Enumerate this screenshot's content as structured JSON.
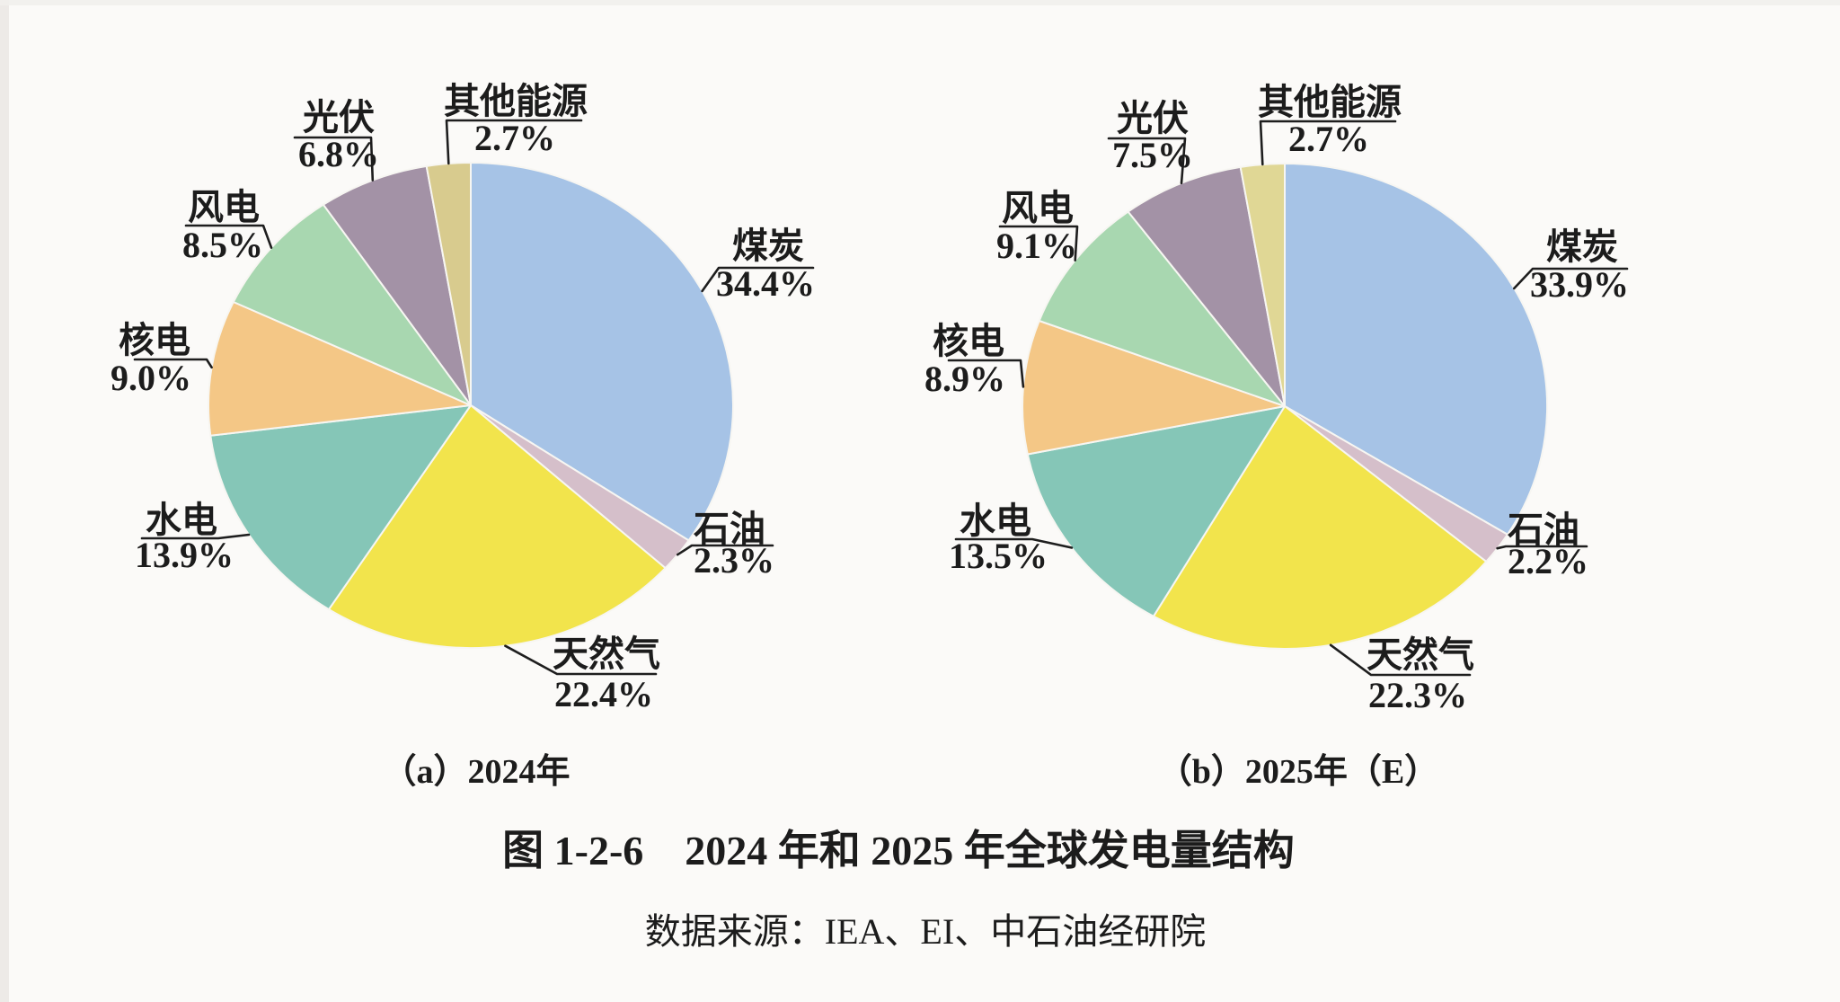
{
  "title": "图 1-2-6　2024 年和 2025 年全球发电量结构",
  "source": "数据来源：IEA、EI、中石油经研院",
  "chart_data": [
    {
      "type": "pie",
      "caption": "（a）2024年",
      "start_angle_deg": 0,
      "clockwise": true,
      "unit": "%",
      "slices": [
        {
          "label": "煤炭",
          "value": 34.4,
          "pct": "34.4%",
          "color": "#a6c3e6"
        },
        {
          "label": "石油",
          "value": 2.3,
          "pct": "2.3%",
          "color": "#d5bfca"
        },
        {
          "label": "天然气",
          "value": 22.4,
          "pct": "22.4%",
          "color": "#f2e44c"
        },
        {
          "label": "水电",
          "value": 13.9,
          "pct": "13.9%",
          "color": "#85c6b7"
        },
        {
          "label": "核电",
          "value": 9.0,
          "pct": "9.0%",
          "color": "#f4c786"
        },
        {
          "label": "风电",
          "value": 8.5,
          "pct": "8.5%",
          "color": "#a8d7b0"
        },
        {
          "label": "光伏",
          "value": 6.8,
          "pct": "6.8%",
          "color": "#a392a6"
        },
        {
          "label": "其他能源",
          "value": 2.7,
          "pct": "2.7%",
          "color": "#d8cb8e"
        }
      ]
    },
    {
      "type": "pie",
      "caption": "（b）2025年（E）",
      "start_angle_deg": 0,
      "clockwise": true,
      "unit": "%",
      "slices": [
        {
          "label": "煤炭",
          "value": 33.9,
          "pct": "33.9%",
          "color": "#a6c3e6"
        },
        {
          "label": "石油",
          "value": 2.2,
          "pct": "2.2%",
          "color": "#d5bfca"
        },
        {
          "label": "天然气",
          "value": 22.3,
          "pct": "22.3%",
          "color": "#f2e44c"
        },
        {
          "label": "水电",
          "value": 13.5,
          "pct": "13.5%",
          "color": "#85c6b7"
        },
        {
          "label": "核电",
          "value": 8.9,
          "pct": "8.9%",
          "color": "#f4c786"
        },
        {
          "label": "风电",
          "value": 9.1,
          "pct": "9.1%",
          "color": "#a8d7b0"
        },
        {
          "label": "光伏",
          "value": 7.5,
          "pct": "7.5%",
          "color": "#a392a6"
        },
        {
          "label": "其他能源",
          "value": 2.7,
          "pct": "2.7%",
          "color": "#e0d795"
        }
      ]
    }
  ]
}
